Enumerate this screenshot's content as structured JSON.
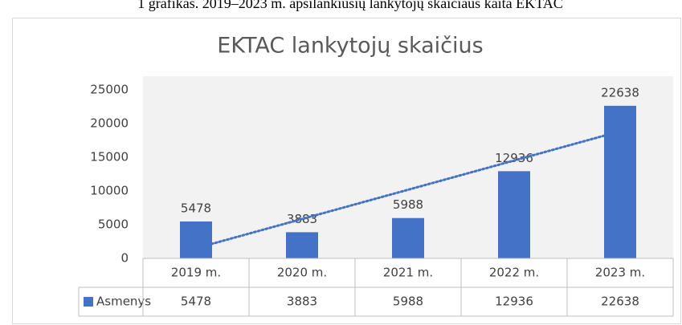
{
  "caption": "1 grafikas. 2019–2023 m. apsilankiusių lankytojų skaičiaus kaita EKTAC",
  "chart_data": {
    "type": "bar",
    "title": "EKTAC lankytojų skaičius",
    "categories": [
      "2019 m.",
      "2020 m.",
      "2021 m.",
      "2022 m.",
      "2023 m."
    ],
    "series": [
      {
        "name": "Asmenys",
        "color": "#4472c4",
        "values": [
          5478,
          3883,
          5988,
          12936,
          22638
        ]
      }
    ],
    "ylim": [
      0,
      25000
    ],
    "yticks": [
      0,
      5000,
      10000,
      15000,
      20000,
      25000
    ],
    "grid": false,
    "data_labels": true,
    "data_table": true,
    "trendline": "linear"
  }
}
